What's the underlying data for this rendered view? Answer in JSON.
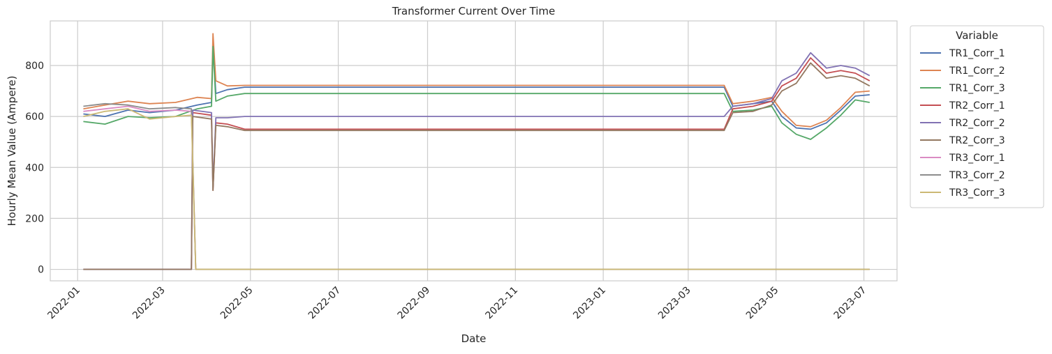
{
  "chart_data": {
    "type": "line",
    "title": "Transformer Current Over Time",
    "xlabel": "Date",
    "ylabel": "Hourly Mean Value (Ampere)",
    "xlim": [
      "2021-12-13",
      "2023-07-24"
    ],
    "ylim": [
      -45,
      975
    ],
    "grid": true,
    "legend": {
      "title": "Variable",
      "placement": "outside-right"
    },
    "x_ticks": [
      "2022-01",
      "2022-03",
      "2022-05",
      "2022-07",
      "2022-09",
      "2022-11",
      "2023-01",
      "2023-03",
      "2023-05",
      "2023-07"
    ],
    "y_ticks": [
      0,
      200,
      400,
      600,
      800
    ],
    "series": [
      {
        "name": "TR1_Corr_1",
        "color": "#4c72b0",
        "points": [
          [
            "2022-01-05",
            610
          ],
          [
            "2022-01-20",
            600
          ],
          [
            "2022-02-05",
            625
          ],
          [
            "2022-02-20",
            615
          ],
          [
            "2022-03-10",
            625
          ],
          [
            "2022-03-25",
            645
          ],
          [
            "2022-04-04",
            655
          ],
          [
            "2022-04-05",
            880
          ],
          [
            "2022-04-07",
            690
          ],
          [
            "2022-04-15",
            705
          ],
          [
            "2022-04-27",
            715
          ],
          [
            "2022-09-01",
            715
          ],
          [
            "2023-01-01",
            715
          ],
          [
            "2023-03-26",
            715
          ],
          [
            "2023-04-01",
            640
          ],
          [
            "2023-04-15",
            650
          ],
          [
            "2023-04-28",
            660
          ],
          [
            "2023-05-05",
            600
          ],
          [
            "2023-05-15",
            555
          ],
          [
            "2023-05-25",
            550
          ],
          [
            "2023-06-05",
            575
          ],
          [
            "2023-06-15",
            625
          ],
          [
            "2023-06-25",
            680
          ],
          [
            "2023-07-05",
            685
          ]
        ]
      },
      {
        "name": "TR1_Corr_2",
        "color": "#dd8452",
        "points": [
          [
            "2022-01-05",
            630
          ],
          [
            "2022-01-20",
            645
          ],
          [
            "2022-02-05",
            660
          ],
          [
            "2022-02-20",
            650
          ],
          [
            "2022-03-10",
            655
          ],
          [
            "2022-03-25",
            675
          ],
          [
            "2022-04-04",
            670
          ],
          [
            "2022-04-05",
            925
          ],
          [
            "2022-04-07",
            740
          ],
          [
            "2022-04-15",
            720
          ],
          [
            "2022-04-27",
            722
          ],
          [
            "2022-09-01",
            722
          ],
          [
            "2023-01-01",
            722
          ],
          [
            "2023-03-26",
            722
          ],
          [
            "2023-04-01",
            650
          ],
          [
            "2023-04-15",
            660
          ],
          [
            "2023-04-28",
            675
          ],
          [
            "2023-05-05",
            620
          ],
          [
            "2023-05-15",
            565
          ],
          [
            "2023-05-25",
            560
          ],
          [
            "2023-06-05",
            585
          ],
          [
            "2023-06-15",
            635
          ],
          [
            "2023-06-25",
            695
          ],
          [
            "2023-07-05",
            700
          ]
        ]
      },
      {
        "name": "TR1_Corr_3",
        "color": "#55a868",
        "points": [
          [
            "2022-01-05",
            580
          ],
          [
            "2022-01-20",
            570
          ],
          [
            "2022-02-05",
            600
          ],
          [
            "2022-02-20",
            595
          ],
          [
            "2022-03-10",
            600
          ],
          [
            "2022-03-25",
            630
          ],
          [
            "2022-04-04",
            640
          ],
          [
            "2022-04-05",
            875
          ],
          [
            "2022-04-07",
            660
          ],
          [
            "2022-04-15",
            680
          ],
          [
            "2022-04-27",
            690
          ],
          [
            "2022-09-01",
            690
          ],
          [
            "2023-01-01",
            690
          ],
          [
            "2023-03-26",
            690
          ],
          [
            "2023-04-01",
            620
          ],
          [
            "2023-04-15",
            625
          ],
          [
            "2023-04-28",
            640
          ],
          [
            "2023-05-05",
            575
          ],
          [
            "2023-05-15",
            530
          ],
          [
            "2023-05-25",
            510
          ],
          [
            "2023-06-05",
            555
          ],
          [
            "2023-06-15",
            605
          ],
          [
            "2023-06-25",
            665
          ],
          [
            "2023-07-05",
            655
          ]
        ]
      },
      {
        "name": "TR2_Corr_1",
        "color": "#c44e52",
        "points": [
          [
            "2022-01-05",
            0
          ],
          [
            "2022-03-21",
            0
          ],
          [
            "2022-03-22",
            615
          ],
          [
            "2022-04-04",
            605
          ],
          [
            "2022-04-05",
            310
          ],
          [
            "2022-04-07",
            575
          ],
          [
            "2022-04-15",
            570
          ],
          [
            "2022-04-27",
            550
          ],
          [
            "2022-09-01",
            550
          ],
          [
            "2023-01-01",
            550
          ],
          [
            "2023-03-26",
            550
          ],
          [
            "2023-04-01",
            630
          ],
          [
            "2023-04-15",
            640
          ],
          [
            "2023-04-28",
            660
          ],
          [
            "2023-05-05",
            720
          ],
          [
            "2023-05-15",
            750
          ],
          [
            "2023-05-25",
            830
          ],
          [
            "2023-06-05",
            770
          ],
          [
            "2023-06-15",
            780
          ],
          [
            "2023-06-25",
            770
          ],
          [
            "2023-07-05",
            740
          ]
        ]
      },
      {
        "name": "TR2_Corr_2",
        "color": "#8172b3",
        "points": [
          [
            "2022-01-05",
            0
          ],
          [
            "2022-03-21",
            0
          ],
          [
            "2022-03-22",
            625
          ],
          [
            "2022-04-04",
            615
          ],
          [
            "2022-04-05",
            320
          ],
          [
            "2022-04-07",
            595
          ],
          [
            "2022-04-15",
            595
          ],
          [
            "2022-04-27",
            600
          ],
          [
            "2022-09-01",
            600
          ],
          [
            "2023-01-01",
            600
          ],
          [
            "2023-03-26",
            600
          ],
          [
            "2023-04-01",
            640
          ],
          [
            "2023-04-15",
            650
          ],
          [
            "2023-04-28",
            670
          ],
          [
            "2023-05-05",
            740
          ],
          [
            "2023-05-15",
            770
          ],
          [
            "2023-05-25",
            850
          ],
          [
            "2023-06-05",
            790
          ],
          [
            "2023-06-15",
            800
          ],
          [
            "2023-06-25",
            790
          ],
          [
            "2023-07-05",
            760
          ]
        ]
      },
      {
        "name": "TR2_Corr_3",
        "color": "#937860",
        "points": [
          [
            "2022-01-05",
            0
          ],
          [
            "2022-03-21",
            0
          ],
          [
            "2022-03-22",
            600
          ],
          [
            "2022-04-04",
            590
          ],
          [
            "2022-04-05",
            310
          ],
          [
            "2022-04-07",
            565
          ],
          [
            "2022-04-15",
            560
          ],
          [
            "2022-04-27",
            545
          ],
          [
            "2022-09-01",
            545
          ],
          [
            "2023-01-01",
            545
          ],
          [
            "2023-03-26",
            545
          ],
          [
            "2023-04-01",
            615
          ],
          [
            "2023-04-15",
            620
          ],
          [
            "2023-04-28",
            645
          ],
          [
            "2023-05-05",
            700
          ],
          [
            "2023-05-15",
            730
          ],
          [
            "2023-05-25",
            810
          ],
          [
            "2023-06-05",
            750
          ],
          [
            "2023-06-15",
            760
          ],
          [
            "2023-06-25",
            750
          ],
          [
            "2023-07-05",
            720
          ]
        ]
      },
      {
        "name": "TR3_Corr_1",
        "color": "#da8bc3",
        "points": [
          [
            "2022-01-05",
            620
          ],
          [
            "2022-01-20",
            630
          ],
          [
            "2022-02-05",
            640
          ],
          [
            "2022-02-20",
            620
          ],
          [
            "2022-03-10",
            625
          ],
          [
            "2022-03-21",
            620
          ],
          [
            "2022-03-24",
            0
          ],
          [
            "2023-07-05",
            0
          ]
        ]
      },
      {
        "name": "TR3_Corr_2",
        "color": "#8c8c8c",
        "points": [
          [
            "2022-01-05",
            640
          ],
          [
            "2022-01-20",
            650
          ],
          [
            "2022-02-05",
            645
          ],
          [
            "2022-02-20",
            630
          ],
          [
            "2022-03-10",
            635
          ],
          [
            "2022-03-21",
            630
          ],
          [
            "2022-03-24",
            0
          ],
          [
            "2023-07-05",
            0
          ]
        ]
      },
      {
        "name": "TR3_Corr_3",
        "color": "#ccb974",
        "points": [
          [
            "2022-01-05",
            600
          ],
          [
            "2022-01-20",
            620
          ],
          [
            "2022-02-05",
            630
          ],
          [
            "2022-02-20",
            590
          ],
          [
            "2022-03-10",
            600
          ],
          [
            "2022-03-21",
            605
          ],
          [
            "2022-03-24",
            0
          ],
          [
            "2023-07-05",
            0
          ]
        ]
      }
    ]
  }
}
